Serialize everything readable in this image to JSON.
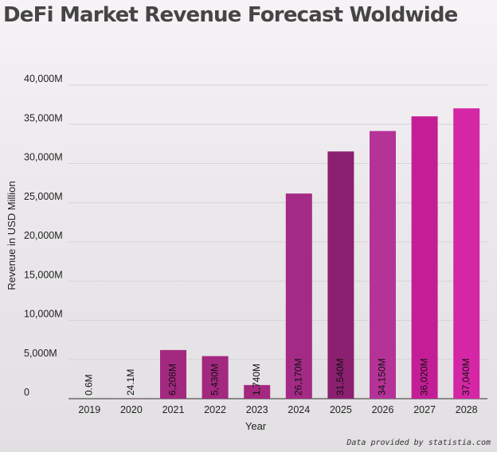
{
  "title": "DeFi Market Revenue Forecast Woldwide",
  "credit": "Data provided by statistia.com",
  "chart_data": {
    "type": "bar",
    "title": "DeFi Market Revenue Forecast Woldwide",
    "xlabel": "Year",
    "ylabel": "Revenue in USD Million",
    "ylim": [
      0,
      40000
    ],
    "yticks": [
      0,
      5000,
      10000,
      15000,
      20000,
      25000,
      30000,
      35000,
      40000
    ],
    "ytick_labels": [
      "0",
      "5,000M",
      "10,000M",
      "15,000M",
      "20,000M",
      "25,000M",
      "30,000M",
      "35,000M",
      "40,000M"
    ],
    "grid": true,
    "categories": [
      "2019",
      "2020",
      "2021",
      "2022",
      "2023",
      "2024",
      "2025",
      "2026",
      "2027",
      "2028"
    ],
    "values": [
      0.6,
      24.1,
      6208,
      5430,
      1740,
      26170,
      31540,
      34150,
      36020,
      37040
    ],
    "data_labels": [
      "0.6M",
      "24.1M",
      "6,208M",
      "5,430M",
      "1,740M",
      "26,170M",
      "31,540M",
      "34,150M",
      "36,020M",
      "37,040M"
    ],
    "colors": [
      "#a3287f",
      "#a3287f",
      "#a3287f",
      "#a3287f",
      "#a3287f",
      "#a32a85",
      "#8b2070",
      "#b53397",
      "#c41e97",
      "#d426a5"
    ]
  }
}
